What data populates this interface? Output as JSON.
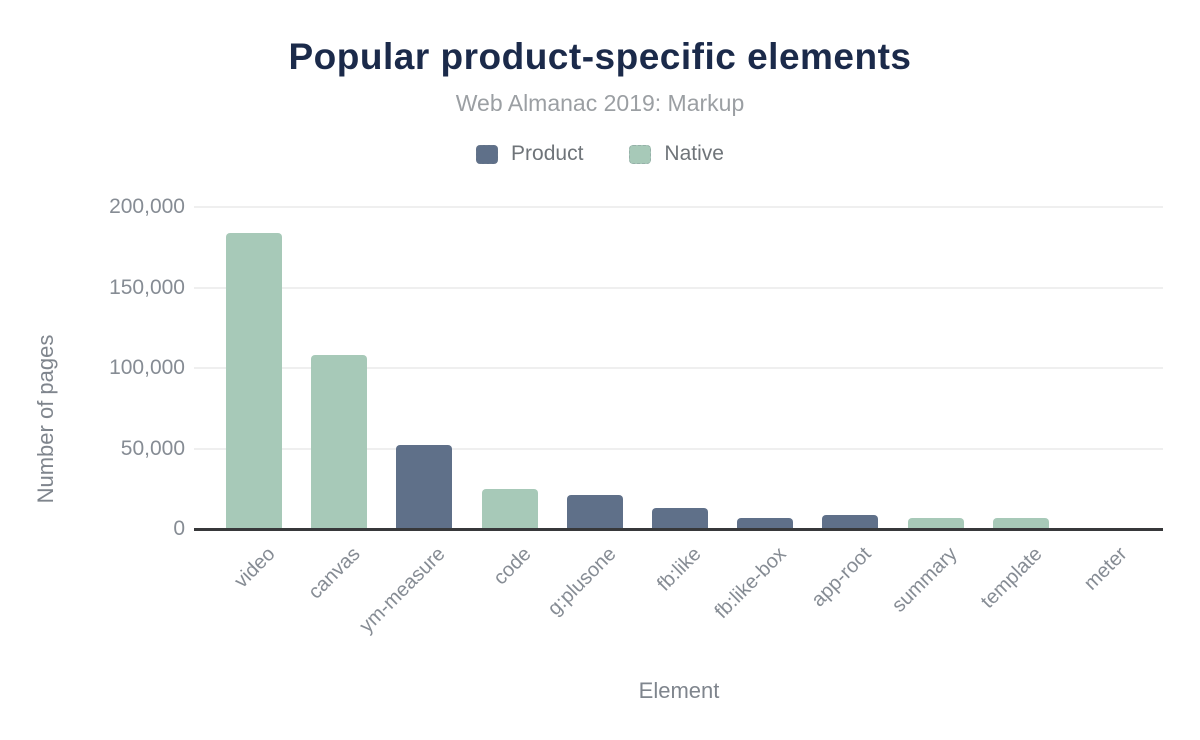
{
  "header": {
    "title": "Popular product-specific elements",
    "subtitle": "Web Almanac 2019: Markup"
  },
  "chart_data": {
    "type": "bar",
    "title": "Popular product-specific elements",
    "subtitle": "Web Almanac 2019: Markup",
    "xlabel": "Element",
    "ylabel": "Number of pages",
    "categories": [
      "video",
      "canvas",
      "ym-measure",
      "code",
      "g:plusone",
      "fb:like",
      "fb:like-box",
      "app-root",
      "summary",
      "template",
      "meter"
    ],
    "values": [
      184149,
      108355,
      52146,
      25075,
      21098,
      12773,
      6792,
      8468,
      6578,
      6618,
      223
    ],
    "category_series": [
      "Native",
      "Native",
      "Product",
      "Native",
      "Product",
      "Product",
      "Product",
      "Product",
      "Native",
      "Native",
      "Native"
    ],
    "legend": [
      {
        "label": "Product",
        "color": "#5f7089"
      },
      {
        "label": "Native",
        "color": "#a7c9b8"
      }
    ],
    "legend_position": "top",
    "grid": "horizontal",
    "ylim": [
      0,
      200000
    ],
    "yticks": [
      {
        "value": 0,
        "label": "0"
      },
      {
        "value": 50000,
        "label": "50,000"
      },
      {
        "value": 100000,
        "label": "100,000"
      },
      {
        "value": 150000,
        "label": "150,000"
      },
      {
        "value": 200000,
        "label": "200,000"
      }
    ],
    "colors": {
      "product": "#5f7089",
      "native": "#a7c9b8",
      "title": "#1b2a4a",
      "subtitle": "#9b9fa3",
      "axis_text": "#868c94",
      "legend_text": "#6f7479",
      "gridline": "#efefef",
      "axis_line": "#37383a",
      "background": "#ffffff"
    }
  }
}
